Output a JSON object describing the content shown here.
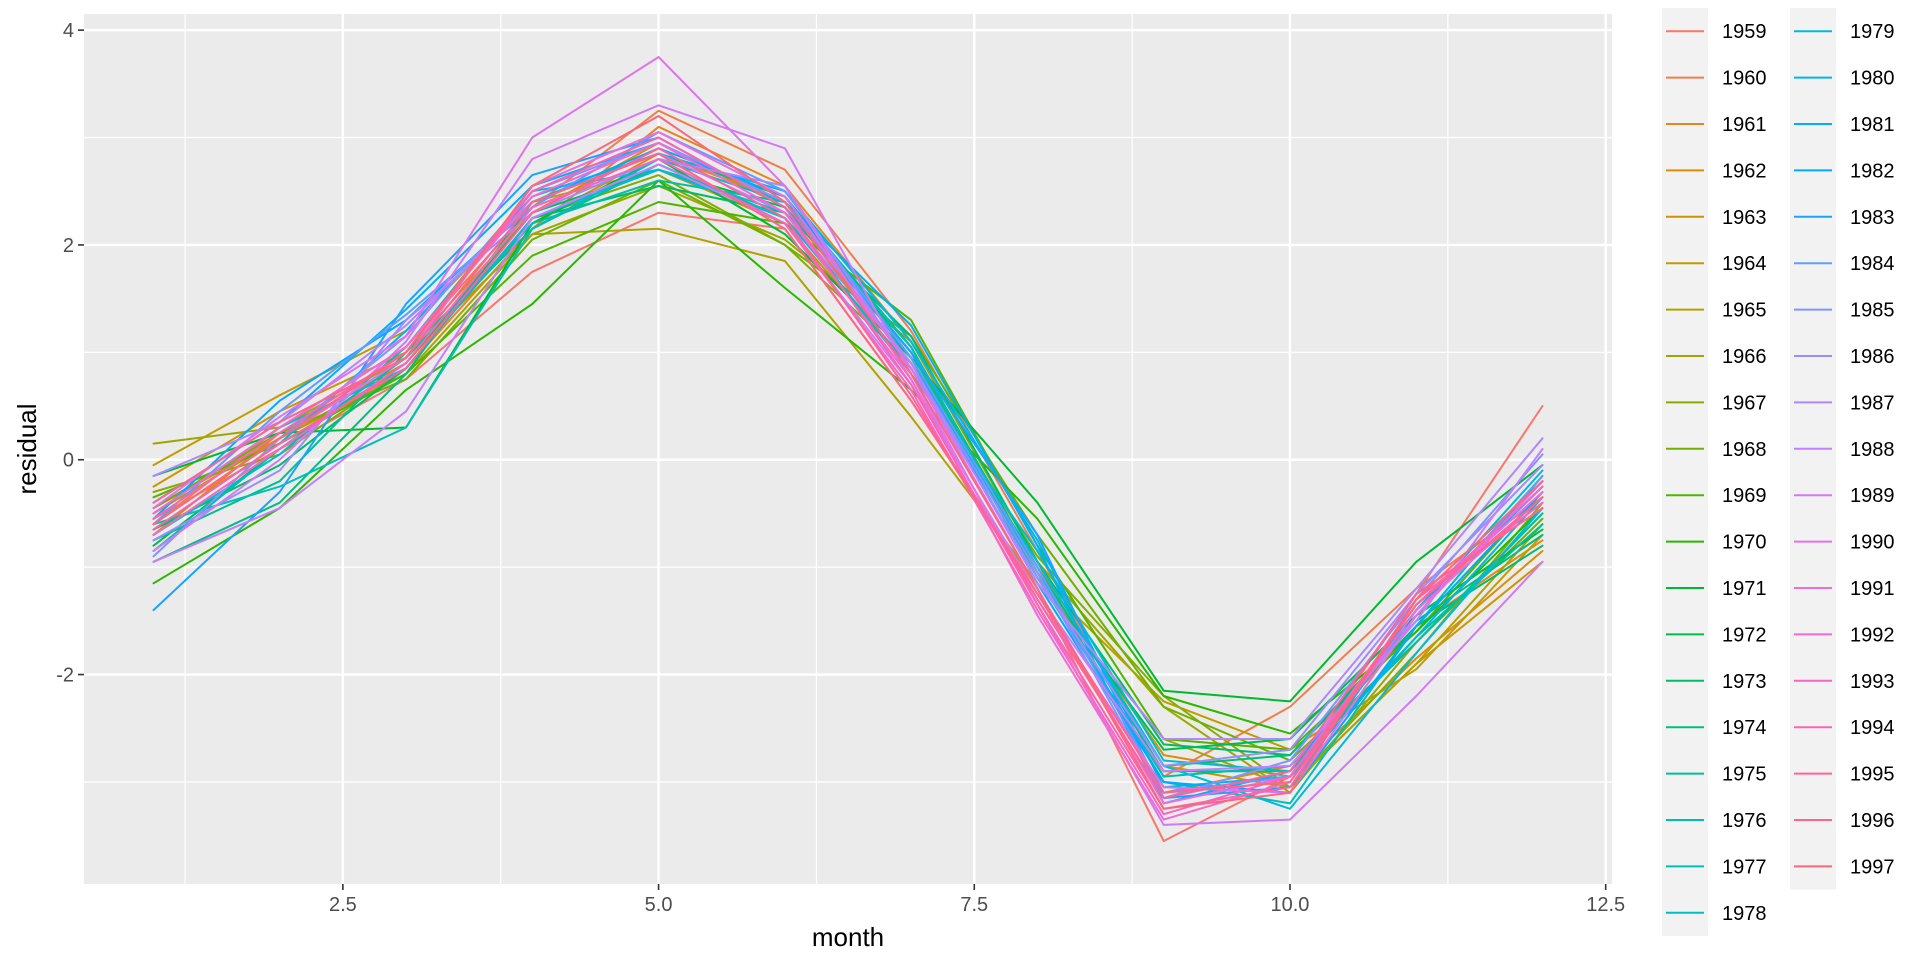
{
  "chart_data": {
    "type": "line",
    "title": "",
    "xlabel": "month",
    "ylabel": "residual",
    "xlim": [
      0.45,
      12.55
    ],
    "ylim": [
      -3.95,
      4.15
    ],
    "x_ticks": [
      2.5,
      5.0,
      7.5,
      10.0,
      12.5
    ],
    "x_tick_labels": [
      "2.5",
      "5.0",
      "7.5",
      "10.0",
      "12.5"
    ],
    "y_ticks": [
      -2,
      0,
      2,
      4
    ],
    "y_tick_labels": [
      "-2",
      "0",
      "2",
      "4"
    ],
    "grid": true,
    "legend": {
      "position": "right",
      "columns": 2
    },
    "x": [
      1,
      2,
      3,
      4,
      5,
      6,
      7,
      8,
      9,
      10,
      11,
      12
    ],
    "series": [
      {
        "name": "1959",
        "color": "#F8766D",
        "values": [
          -0.55,
          0.1,
          0.75,
          1.75,
          2.3,
          2.15,
          0.55,
          -1.2,
          -3.55,
          -2.95,
          -1.25,
          0.5
        ]
      },
      {
        "name": "1960",
        "color": "#F07E4B",
        "values": [
          -0.6,
          0.3,
          1.05,
          2.35,
          3.25,
          2.7,
          1.2,
          -0.85,
          -2.95,
          -2.3,
          -1.2,
          -0.35
        ]
      },
      {
        "name": "1961",
        "color": "#E7861B",
        "values": [
          -0.45,
          0.2,
          0.85,
          2.15,
          3.1,
          2.55,
          1.1,
          -0.95,
          -3.1,
          -2.85,
          -1.55,
          -0.75
        ]
      },
      {
        "name": "1962",
        "color": "#DB8E00",
        "values": [
          -0.7,
          0.25,
          0.9,
          2.2,
          2.85,
          2.4,
          1.0,
          -1.05,
          -2.75,
          -2.95,
          -1.85,
          -0.85
        ]
      },
      {
        "name": "1963",
        "color": "#CE9500",
        "values": [
          -0.25,
          0.45,
          1.0,
          2.3,
          2.95,
          2.35,
          0.9,
          -1.0,
          -2.85,
          -3.05,
          -1.9,
          -0.95
        ]
      },
      {
        "name": "1964",
        "color": "#BF9C00",
        "values": [
          -0.05,
          0.6,
          1.2,
          2.4,
          2.7,
          2.2,
          0.85,
          -1.1,
          -2.25,
          -2.7,
          -1.95,
          -0.7
        ]
      },
      {
        "name": "1965",
        "color": "#AFA200",
        "values": [
          -0.5,
          0.2,
          0.8,
          2.1,
          2.15,
          1.85,
          0.4,
          -1.15,
          -2.6,
          -3.05,
          -1.9,
          -0.6
        ]
      },
      {
        "name": "1966",
        "color": "#9CA700",
        "values": [
          0.15,
          0.3,
          0.95,
          2.1,
          2.55,
          2.05,
          1.1,
          -0.95,
          -2.3,
          -3.1,
          -1.7,
          -0.5
        ]
      },
      {
        "name": "1967",
        "color": "#87AC00",
        "values": [
          -0.3,
          0.05,
          0.85,
          2.25,
          2.65,
          2.0,
          0.9,
          -0.9,
          -2.2,
          -3.05,
          -1.8,
          -0.4
        ]
      },
      {
        "name": "1968",
        "color": "#6FB000",
        "values": [
          -0.45,
          0.25,
          0.75,
          2.05,
          2.6,
          2.0,
          1.15,
          -0.7,
          -2.3,
          -2.8,
          -1.7,
          -0.55
        ]
      },
      {
        "name": "1969",
        "color": "#52B400",
        "values": [
          -0.35,
          0.15,
          0.8,
          1.9,
          2.4,
          2.2,
          1.3,
          -0.8,
          -2.6,
          -2.7,
          -1.6,
          -0.3
        ]
      },
      {
        "name": "1970",
        "color": "#2AB700",
        "values": [
          -1.15,
          -0.45,
          0.65,
          1.45,
          2.6,
          1.6,
          0.65,
          -0.55,
          -2.2,
          -2.55,
          -1.6,
          -0.45
        ]
      },
      {
        "name": "1971",
        "color": "#00B92F",
        "values": [
          -0.15,
          0.25,
          0.3,
          2.2,
          2.8,
          2.1,
          0.95,
          -0.4,
          -2.15,
          -2.25,
          -0.95,
          -0.05
        ]
      },
      {
        "name": "1972",
        "color": "#00BB4E",
        "values": [
          -0.8,
          0.1,
          0.9,
          2.3,
          2.7,
          2.35,
          1.05,
          -1.1,
          -2.7,
          -2.6,
          -1.45,
          -0.65
        ]
      },
      {
        "name": "1973",
        "color": "#00BC67",
        "values": [
          -0.65,
          -0.05,
          0.85,
          2.25,
          2.55,
          2.3,
          1.15,
          -0.95,
          -2.65,
          -2.75,
          -1.55,
          -0.8
        ]
      },
      {
        "name": "1974",
        "color": "#00BE7E",
        "values": [
          -0.95,
          -0.4,
          0.8,
          2.4,
          2.85,
          2.45,
          1.05,
          -1.0,
          -2.85,
          -2.75,
          -1.5,
          -0.7
        ]
      },
      {
        "name": "1975",
        "color": "#00BF93",
        "values": [
          -0.75,
          -0.2,
          1.0,
          2.15,
          2.75,
          2.25,
          0.95,
          -1.05,
          -2.9,
          -2.9,
          -1.65,
          -0.6
        ]
      },
      {
        "name": "1976",
        "color": "#00BFA7",
        "values": [
          -0.85,
          0.1,
          0.95,
          2.2,
          2.6,
          2.4,
          1.0,
          -1.1,
          -2.95,
          -2.85,
          -1.7,
          -0.5
        ]
      },
      {
        "name": "1977",
        "color": "#00BEBA",
        "values": [
          -0.6,
          -0.25,
          0.3,
          2.15,
          2.8,
          2.4,
          1.05,
          -1.05,
          -3.0,
          -3.2,
          -1.55,
          -0.15
        ]
      },
      {
        "name": "1978",
        "color": "#00BDCC",
        "values": [
          -0.7,
          0.05,
          1.05,
          2.5,
          2.7,
          2.3,
          0.8,
          -0.85,
          -2.8,
          -2.9,
          -1.4,
          -0.1
        ]
      },
      {
        "name": "1979",
        "color": "#00BADC",
        "values": [
          -0.5,
          0.3,
          0.85,
          2.25,
          2.7,
          2.25,
          0.85,
          -0.95,
          -2.85,
          -3.25,
          -1.8,
          -0.45
        ]
      },
      {
        "name": "1980",
        "color": "#00B5EA",
        "values": [
          -0.65,
          0.15,
          1.2,
          2.45,
          2.85,
          2.5,
          1.1,
          -0.75,
          -3.05,
          -2.95,
          -1.65,
          -0.35
        ]
      },
      {
        "name": "1981",
        "color": "#00B0F6",
        "values": [
          -0.4,
          0.35,
          1.4,
          2.55,
          2.95,
          2.4,
          1.25,
          -0.8,
          -3.2,
          -2.9,
          -1.4,
          -0.25
        ]
      },
      {
        "name": "1982",
        "color": "#00AAFE",
        "values": [
          -0.55,
          0.55,
          1.3,
          2.4,
          2.9,
          2.45,
          0.95,
          -1.15,
          -3.0,
          -3.1,
          -1.55,
          -0.3
        ]
      },
      {
        "name": "1983",
        "color": "#1CA3FF",
        "values": [
          -1.4,
          -0.3,
          1.45,
          2.65,
          3.0,
          2.35,
          1.0,
          -0.7,
          -3.15,
          -3.05,
          -1.4,
          -0.2
        ]
      },
      {
        "name": "1984",
        "color": "#619CFF",
        "values": [
          -0.6,
          0.45,
          1.35,
          2.35,
          3.05,
          2.5,
          0.95,
          -1.0,
          -3.1,
          -2.95,
          -1.45,
          -0.15
        ]
      },
      {
        "name": "1985",
        "color": "#8294FF",
        "values": [
          -0.9,
          0.2,
          1.15,
          2.5,
          2.95,
          2.4,
          0.9,
          -1.05,
          -3.15,
          -2.8,
          -1.3,
          0.05
        ]
      },
      {
        "name": "1986",
        "color": "#9C8DFF",
        "values": [
          -0.75,
          -0.1,
          1.3,
          2.3,
          2.8,
          2.55,
          0.85,
          -1.1,
          -2.85,
          -2.7,
          -1.25,
          -0.05
        ]
      },
      {
        "name": "1987",
        "color": "#B186FF",
        "values": [
          -0.15,
          0.35,
          1.25,
          2.4,
          2.85,
          2.3,
          0.9,
          -1.15,
          -2.6,
          -2.6,
          -1.2,
          0.2
        ]
      },
      {
        "name": "1988",
        "color": "#C37FFF",
        "values": [
          -0.95,
          -0.45,
          0.45,
          2.25,
          2.75,
          2.2,
          0.7,
          -1.25,
          -2.9,
          -2.85,
          -1.5,
          0.1
        ]
      },
      {
        "name": "1989",
        "color": "#D279F6",
        "values": [
          -0.85,
          0.0,
          1.1,
          2.8,
          3.3,
          2.9,
          0.8,
          -1.35,
          -3.4,
          -3.35,
          -2.2,
          -0.95
        ]
      },
      {
        "name": "1990",
        "color": "#DF73EC",
        "values": [
          -0.45,
          0.4,
          1.15,
          3.0,
          3.75,
          2.55,
          0.75,
          -1.3,
          -3.05,
          -3.1,
          -1.45,
          -0.2
        ]
      },
      {
        "name": "1991",
        "color": "#EA6EE0",
        "values": [
          -0.6,
          0.2,
          0.95,
          2.55,
          3.05,
          2.45,
          0.85,
          -1.2,
          -3.2,
          -2.95,
          -1.35,
          -0.3
        ]
      },
      {
        "name": "1992",
        "color": "#F26AD2",
        "values": [
          -0.5,
          0.3,
          1.05,
          2.45,
          2.95,
          2.3,
          0.75,
          -1.45,
          -3.35,
          -3.0,
          -1.4,
          -0.35
        ]
      },
      {
        "name": "1993",
        "color": "#F866C2",
        "values": [
          -0.7,
          0.1,
          0.9,
          2.35,
          2.8,
          2.2,
          0.65,
          -1.4,
          -3.3,
          -2.95,
          -1.35,
          -0.25
        ]
      },
      {
        "name": "1994",
        "color": "#FC64B1",
        "values": [
          -0.55,
          0.25,
          1.0,
          2.5,
          3.0,
          2.35,
          0.7,
          -1.35,
          -3.25,
          -3.05,
          -1.3,
          -0.4
        ]
      },
      {
        "name": "1995",
        "color": "#FE63A0",
        "values": [
          -0.65,
          0.15,
          0.85,
          2.3,
          2.9,
          2.25,
          0.6,
          -1.3,
          -3.15,
          -2.9,
          -1.25,
          -0.45
        ]
      },
      {
        "name": "1996",
        "color": "#FD658E",
        "values": [
          -0.4,
          0.35,
          0.95,
          2.4,
          2.85,
          2.15,
          0.55,
          -1.25,
          -3.1,
          -3.0,
          -1.35,
          -0.35
        ]
      },
      {
        "name": "1997",
        "color": "#F9697B",
        "values": [
          -0.6,
          0.2,
          1.0,
          2.55,
          3.2,
          2.4,
          0.8,
          -1.2,
          -3.25,
          -3.1,
          -1.3,
          -0.2
        ]
      }
    ]
  }
}
